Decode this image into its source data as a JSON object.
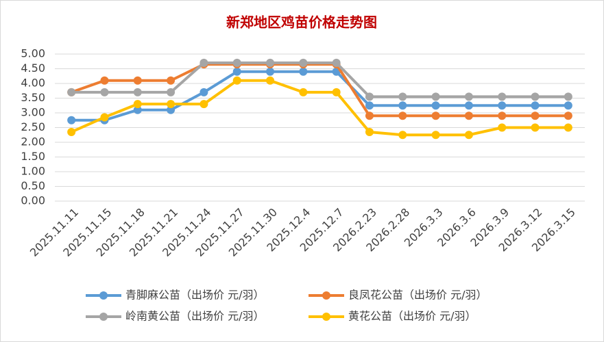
{
  "chart_data": {
    "type": "line",
    "title": "新郑地区鸡苗价格走势图",
    "categories": [
      "2025.11.11",
      "2025.11.15",
      "2025.11.18",
      "2025.11.21",
      "2025.11.24",
      "2025.11.27",
      "2025.11.30",
      "2025.12.4",
      "2025.12.7",
      "2026.2.23",
      "2026.2.28",
      "2026.3.3",
      "2026.3.6",
      "2026.3.9",
      "2026.3.12",
      "2026.3.15"
    ],
    "series": [
      {
        "name": "青脚麻公苗（出场价 元/羽）",
        "color": "#5b9bd5",
        "values": [
          2.75,
          2.75,
          3.1,
          3.1,
          3.7,
          4.4,
          4.4,
          4.4,
          4.4,
          3.25,
          3.25,
          3.25,
          3.25,
          3.25,
          3.25,
          3.25
        ]
      },
      {
        "name": "良凤花公苗（出场价 元/羽）",
        "color": "#ed7d31",
        "values": [
          3.7,
          4.1,
          4.1,
          4.1,
          4.65,
          4.65,
          4.65,
          4.65,
          4.65,
          2.9,
          2.9,
          2.9,
          2.9,
          2.9,
          2.9,
          2.9
        ]
      },
      {
        "name": "岭南黄公苗（出场价 元/羽）",
        "color": "#a5a5a5",
        "values": [
          3.7,
          3.7,
          3.7,
          3.7,
          4.7,
          4.7,
          4.7,
          4.7,
          4.7,
          3.55,
          3.55,
          3.55,
          3.55,
          3.55,
          3.55,
          3.55
        ]
      },
      {
        "name": "黄花公苗（出场价 元/羽）",
        "color": "#ffc000",
        "values": [
          2.35,
          2.85,
          3.3,
          3.3,
          3.3,
          4.1,
          4.1,
          3.7,
          3.7,
          2.35,
          2.25,
          2.25,
          2.25,
          2.5,
          2.5,
          2.5
        ]
      }
    ],
    "ylim": [
      0,
      5
    ],
    "yticks": [
      {
        "value": 0,
        "label": "0.00"
      },
      {
        "value": 0.5,
        "label": "0.50"
      },
      {
        "value": 1,
        "label": "1.00"
      },
      {
        "value": 1.5,
        "label": "1.50"
      },
      {
        "value": 2,
        "label": "2.00"
      },
      {
        "value": 2.5,
        "label": "2.50"
      },
      {
        "value": 3,
        "label": "3.00"
      },
      {
        "value": 3.5,
        "label": "3.50"
      },
      {
        "value": 4,
        "label": "4.00"
      },
      {
        "value": 4.5,
        "label": "4.50"
      },
      {
        "value": 5,
        "label": "5.00"
      }
    ],
    "grid": true,
    "legend": "bottom"
  }
}
